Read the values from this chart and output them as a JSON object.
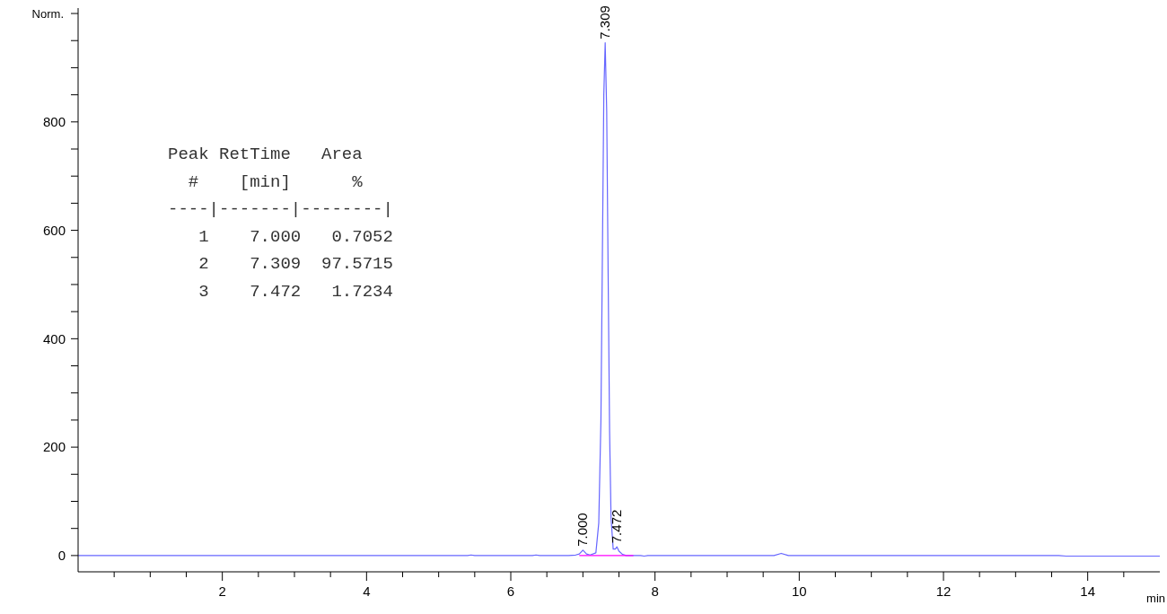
{
  "chart_data": {
    "type": "line",
    "xlabel": "min",
    "ylabel": "Norm.",
    "xlim": [
      0,
      15
    ],
    "ylim": [
      -30,
      1010
    ],
    "xticks": [
      {
        "value": 0.5,
        "label": null
      },
      {
        "value": 1,
        "label": null
      },
      {
        "value": 1.5,
        "label": null
      },
      2,
      {
        "value": 2.5,
        "label": null
      },
      {
        "value": 3,
        "label": null
      },
      {
        "value": 3.5,
        "label": null
      },
      4,
      {
        "value": 4.5,
        "label": null
      },
      {
        "value": 5,
        "label": null
      },
      {
        "value": 5.5,
        "label": null
      },
      6,
      {
        "value": 6.5,
        "label": null
      },
      {
        "value": 7,
        "label": null
      },
      {
        "value": 7.5,
        "label": null
      },
      8,
      {
        "value": 8.5,
        "label": null
      },
      {
        "value": 9,
        "label": null
      },
      {
        "value": 9.5,
        "label": null
      },
      10,
      {
        "value": 10.5,
        "label": null
      },
      {
        "value": 11,
        "label": null
      },
      {
        "value": 11.5,
        "label": null
      },
      12,
      {
        "value": 12.5,
        "label": null
      },
      {
        "value": 13,
        "label": null
      },
      {
        "value": 13.5,
        "label": null
      },
      14,
      {
        "value": 14.5,
        "label": null
      }
    ],
    "yticks": [
      0,
      {
        "value": 50,
        "label": null
      },
      {
        "value": 100,
        "label": null
      },
      {
        "value": 150,
        "label": null
      },
      200,
      {
        "value": 250,
        "label": null
      },
      {
        "value": 300,
        "label": null
      },
      {
        "value": 350,
        "label": null
      },
      400,
      {
        "value": 450,
        "label": null
      },
      {
        "value": 500,
        "label": null
      },
      {
        "value": 550,
        "label": null
      },
      600,
      {
        "value": 650,
        "label": null
      },
      {
        "value": 700,
        "label": null
      },
      {
        "value": 750,
        "label": null
      },
      800,
      {
        "value": 850,
        "label": null
      },
      {
        "value": 900,
        "label": null
      },
      {
        "value": 950,
        "label": null
      },
      {
        "value": 1000,
        "label": null
      }
    ],
    "grid": false,
    "marker": "none",
    "series": [
      {
        "color": "#6666ff",
        "x": [
          0,
          5.4,
          5.45,
          5.5,
          6.3,
          6.35,
          6.4,
          6.8,
          6.9,
          6.95,
          7.0,
          7.05,
          7.1,
          7.18,
          7.22,
          7.25,
          7.27,
          7.29,
          7.309,
          7.33,
          7.35,
          7.37,
          7.39,
          7.42,
          7.45,
          7.472,
          7.5,
          7.55,
          7.6,
          7.8,
          7.85,
          7.9,
          9.65,
          9.75,
          9.85,
          11.0,
          11.8,
          13.6,
          13.7,
          15
        ],
        "values": [
          0,
          0,
          1,
          0,
          0,
          1,
          0,
          0,
          1,
          3,
          10,
          3,
          1,
          5,
          60,
          250,
          550,
          850,
          946,
          820,
          520,
          230,
          70,
          12,
          12,
          16,
          8,
          2,
          0,
          0,
          -1,
          0,
          0,
          4,
          0,
          0,
          0,
          0,
          -1,
          -1
        ]
      },
      {
        "color": "#ff00ff",
        "x": [
          6.95,
          7.7
        ],
        "values": [
          0,
          0
        ]
      }
    ],
    "annotations": [
      {
        "text": "7.309",
        "x": 7.309,
        "y": 946
      },
      {
        "text": "7.000",
        "x": 7.0,
        "y": 10
      },
      {
        "text": "7.472",
        "x": 7.472,
        "y": 16
      },
      "Peak RetTime   Area",
      "  #    [min]      %",
      "----|-------|--------|",
      "   1    7.000   0.7052",
      "   2    7.309  97.5715",
      "   3    7.472   1.7234"
    ]
  }
}
